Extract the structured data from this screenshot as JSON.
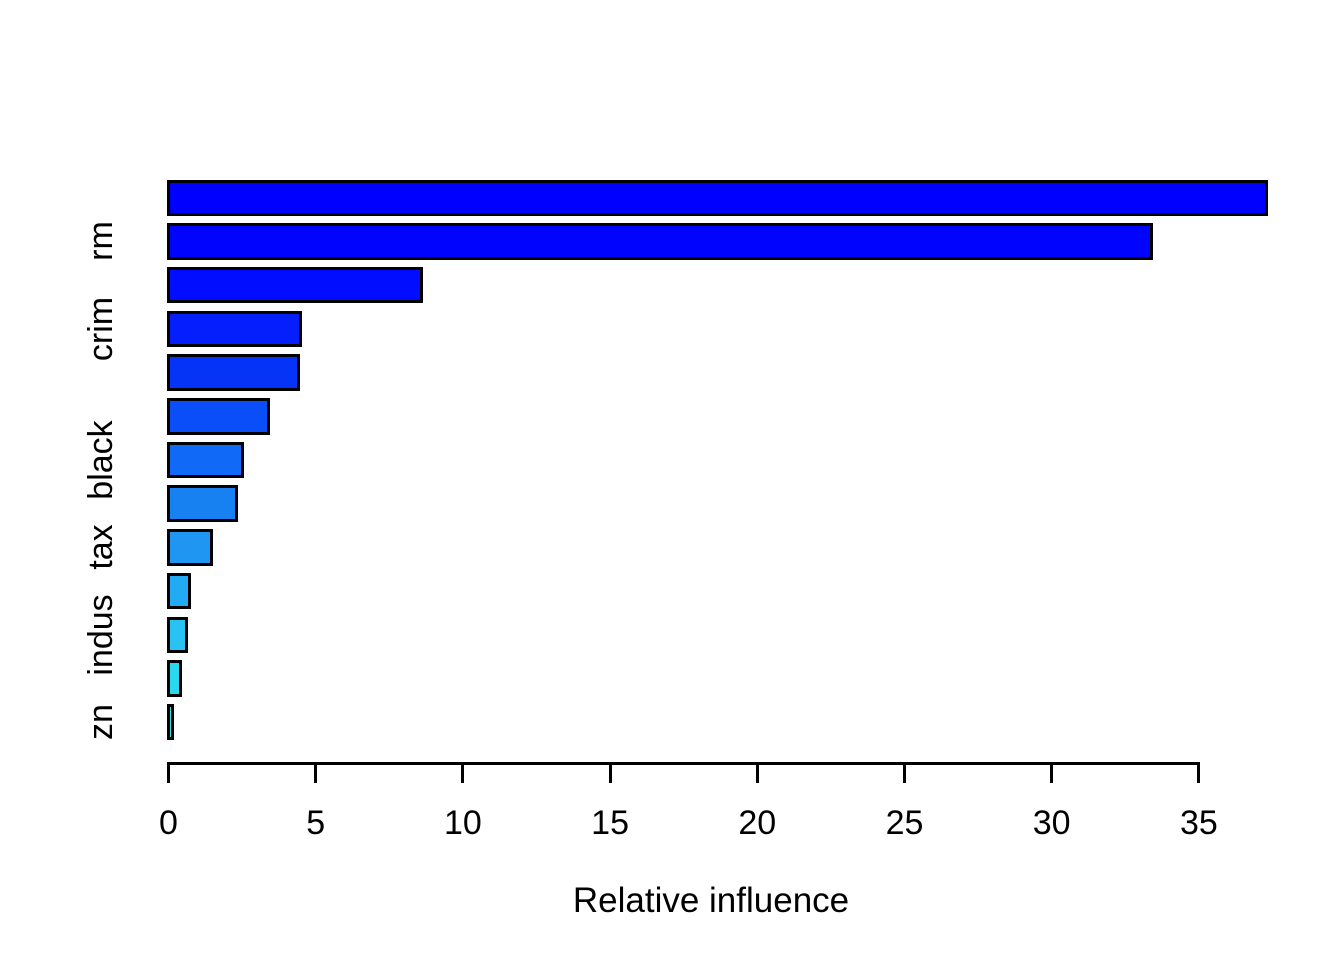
{
  "figure": {
    "background": "#ffffff",
    "axis_color": "#000000",
    "text_color": "#000000",
    "bar_border_color": "#000000"
  },
  "chart_data": {
    "type": "bar",
    "orientation": "horizontal",
    "title": "",
    "xlabel": "Relative influence",
    "ylabel": "",
    "xlim": [
      0,
      37.5
    ],
    "x_ticks": [
      0,
      5,
      10,
      15,
      20,
      25,
      30,
      35
    ],
    "grid": false,
    "legend_position": "none",
    "bars": [
      {
        "label": "",
        "value": 37.3,
        "color": "#0000FF"
      },
      {
        "label": "rm",
        "value": 33.4,
        "color": "#0004FF"
      },
      {
        "label": "",
        "value": 8.6,
        "color": "#010DFF"
      },
      {
        "label": "crim",
        "value": 4.5,
        "color": "#041EFC"
      },
      {
        "label": "",
        "value": 4.4,
        "color": "#0534F6"
      },
      {
        "label": "",
        "value": 3.4,
        "color": "#0A4EFA"
      },
      {
        "label": "black",
        "value": 2.5,
        "color": "#1069F7"
      },
      {
        "label": "",
        "value": 2.3,
        "color": "#1781F2"
      },
      {
        "label": "tax",
        "value": 1.45,
        "color": "#1E96F2"
      },
      {
        "label": "",
        "value": 0.7,
        "color": "#22AAF2"
      },
      {
        "label": "indus",
        "value": 0.6,
        "color": "#29C2F2"
      },
      {
        "label": "",
        "value": 0.4,
        "color": "#2AD8F0"
      },
      {
        "label": "zn",
        "value": 0.15,
        "color": "#34E5DF"
      }
    ]
  }
}
